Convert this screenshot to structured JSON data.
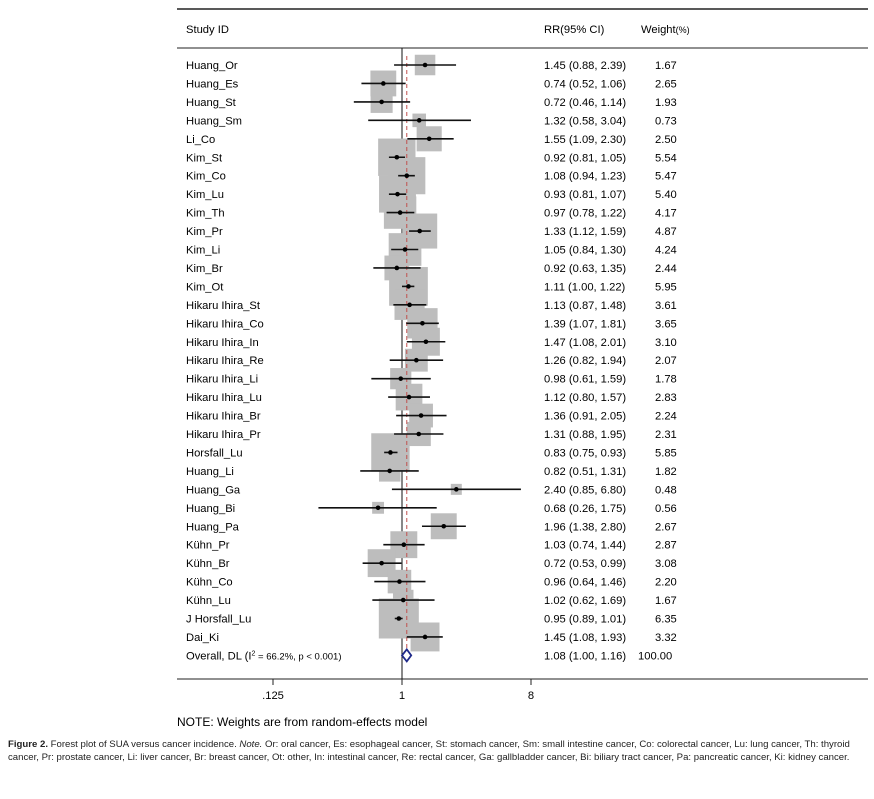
{
  "chart_data": {
    "type": "forest",
    "headers": {
      "study": "Study ID",
      "estimate": "RR(95% CI)",
      "weight": "Weight",
      "weight_unit": "(%)"
    },
    "x_scale": "log2",
    "x_ticks": [
      ".125",
      "1",
      "8"
    ],
    "x_tick_values": [
      0.125,
      1,
      8
    ],
    "xlim": [
      0.125,
      8
    ],
    "null_line": 1,
    "overall_line": 1.08,
    "studies": [
      {
        "label": "Huang_Or",
        "rr": 1.45,
        "lo": 0.88,
        "hi": 2.39,
        "text": "1.45 (0.88, 2.39)",
        "weight": "1.67"
      },
      {
        "label": "Huang_Es",
        "rr": 0.74,
        "lo": 0.52,
        "hi": 1.06,
        "text": "0.74 (0.52, 1.06)",
        "weight": "2.65"
      },
      {
        "label": "Huang_St",
        "rr": 0.72,
        "lo": 0.46,
        "hi": 1.14,
        "text": "0.72 (0.46, 1.14)",
        "weight": "1.93"
      },
      {
        "label": "Huang_Sm",
        "rr": 1.32,
        "lo": 0.58,
        "hi": 3.04,
        "text": "1.32 (0.58, 3.04)",
        "weight": "0.73"
      },
      {
        "label": "Li_Co",
        "rr": 1.55,
        "lo": 1.09,
        "hi": 2.3,
        "text": "1.55 (1.09, 2.30)",
        "weight": "2.50"
      },
      {
        "label": "Kim_St",
        "rr": 0.92,
        "lo": 0.81,
        "hi": 1.05,
        "text": "0.92 (0.81, 1.05)",
        "weight": "5.54"
      },
      {
        "label": "Kim_Co",
        "rr": 1.08,
        "lo": 0.94,
        "hi": 1.23,
        "text": "1.08 (0.94, 1.23)",
        "weight": "5.47"
      },
      {
        "label": "Kim_Lu",
        "rr": 0.93,
        "lo": 0.81,
        "hi": 1.07,
        "text": "0.93 (0.81, 1.07)",
        "weight": "5.40"
      },
      {
        "label": "Kim_Th",
        "rr": 0.97,
        "lo": 0.78,
        "hi": 1.22,
        "text": "0.97 (0.78, 1.22)",
        "weight": "4.17"
      },
      {
        "label": "Kim_Pr",
        "rr": 1.33,
        "lo": 1.12,
        "hi": 1.59,
        "text": "1.33 (1.12, 1.59)",
        "weight": "4.87"
      },
      {
        "label": "Kim_Li",
        "rr": 1.05,
        "lo": 0.84,
        "hi": 1.3,
        "text": "1.05 (0.84, 1.30)",
        "weight": "4.24"
      },
      {
        "label": "Kim_Br",
        "rr": 0.92,
        "lo": 0.63,
        "hi": 1.35,
        "text": "0.92 (0.63, 1.35)",
        "weight": "2.44"
      },
      {
        "label": "Kim_Ot",
        "rr": 1.11,
        "lo": 1.0,
        "hi": 1.22,
        "text": "1.11 (1.00, 1.22)",
        "weight": "5.95"
      },
      {
        "label": "Hikaru Ihira_St",
        "rr": 1.13,
        "lo": 0.87,
        "hi": 1.48,
        "text": "1.13 (0.87, 1.48)",
        "weight": "3.61"
      },
      {
        "label": "Hikaru Ihira_Co",
        "rr": 1.39,
        "lo": 1.07,
        "hi": 1.81,
        "text": "1.39 (1.07, 1.81)",
        "weight": "3.65"
      },
      {
        "label": "Hikaru Ihira_In",
        "rr": 1.47,
        "lo": 1.08,
        "hi": 2.01,
        "text": "1.47 (1.08, 2.01)",
        "weight": "3.10"
      },
      {
        "label": "Hikaru Ihira_Re",
        "rr": 1.26,
        "lo": 0.82,
        "hi": 1.94,
        "text": "1.26 (0.82, 1.94)",
        "weight": "2.07"
      },
      {
        "label": "Hikaru Ihira_Li",
        "rr": 0.98,
        "lo": 0.61,
        "hi": 1.59,
        "text": "0.98 (0.61, 1.59)",
        "weight": "1.78"
      },
      {
        "label": "Hikaru Ihira_Lu",
        "rr": 1.12,
        "lo": 0.8,
        "hi": 1.57,
        "text": "1.12 (0.80, 1.57)",
        "weight": "2.83"
      },
      {
        "label": "Hikaru Ihira_Br",
        "rr": 1.36,
        "lo": 0.91,
        "hi": 2.05,
        "text": "1.36 (0.91, 2.05)",
        "weight": "2.24"
      },
      {
        "label": "Hikaru Ihira_Pr",
        "rr": 1.31,
        "lo": 0.88,
        "hi": 1.95,
        "text": "1.31 (0.88, 1.95)",
        "weight": "2.31"
      },
      {
        "label": "Horsfall_Lu",
        "rr": 0.83,
        "lo": 0.75,
        "hi": 0.93,
        "text": "0.83 (0.75, 0.93)",
        "weight": "5.85"
      },
      {
        "label": "Huang_Li",
        "rr": 0.82,
        "lo": 0.51,
        "hi": 1.31,
        "text": "0.82 (0.51, 1.31)",
        "weight": "1.82"
      },
      {
        "label": "Huang_Ga",
        "rr": 2.4,
        "lo": 0.85,
        "hi": 6.8,
        "text": "2.40 (0.85, 6.80)",
        "weight": "0.48"
      },
      {
        "label": "Huang_Bi",
        "rr": 0.68,
        "lo": 0.26,
        "hi": 1.75,
        "text": "0.68 (0.26, 1.75)",
        "weight": "0.56"
      },
      {
        "label": "Huang_Pa",
        "rr": 1.96,
        "lo": 1.38,
        "hi": 2.8,
        "text": "1.96 (1.38, 2.80)",
        "weight": "2.67"
      },
      {
        "label": "Kühn_Pr",
        "rr": 1.03,
        "lo": 0.74,
        "hi": 1.44,
        "text": "1.03 (0.74, 1.44)",
        "weight": "2.87"
      },
      {
        "label": "Kühn_Br",
        "rr": 0.72,
        "lo": 0.53,
        "hi": 0.99,
        "text": "0.72 (0.53, 0.99)",
        "weight": "3.08"
      },
      {
        "label": "Kühn_Co",
        "rr": 0.96,
        "lo": 0.64,
        "hi": 1.46,
        "text": "0.96 (0.64, 1.46)",
        "weight": "2.20"
      },
      {
        "label": "Kühn_Lu",
        "rr": 1.02,
        "lo": 0.62,
        "hi": 1.69,
        "text": "1.02 (0.62, 1.69)",
        "weight": "1.67"
      },
      {
        "label": "J Horsfall_Lu",
        "rr": 0.95,
        "lo": 0.89,
        "hi": 1.01,
        "text": "0.95 (0.89, 1.01)",
        "weight": "6.35"
      },
      {
        "label": "Dai_Ki",
        "rr": 1.45,
        "lo": 1.08,
        "hi": 1.93,
        "text": "1.45 (1.08, 1.93)",
        "weight": "3.32"
      }
    ],
    "overall": {
      "label_prefix": "Overall, DL (I",
      "label_sup": "2",
      "label_suffix": " = 66.2%, p < 0.001)",
      "rr": 1.08,
      "lo": 1.0,
      "hi": 1.16,
      "text": "1.08 (1.00, 1.16)",
      "weight": "100.00"
    },
    "note": "NOTE: Weights are from random-effects model",
    "colors": {
      "box": "#bdbdbd",
      "ci": "#111111",
      "null_line": "#111111",
      "overall_line": "#c0504d",
      "diamond": "#1f2a8a"
    }
  },
  "caption": {
    "label": "Figure 2.",
    "text1": " Forest plot of SUA versus cancer incidence. ",
    "note_label": "Note.",
    "text2": " Or: oral cancer, Es: esophageal cancer, St: stomach cancer, Sm: small intestine cancer, Co: colorectal cancer, Lu: lung cancer, Th: thyroid cancer, Pr: prostate cancer, Li: liver cancer, Br: breast cancer, Ot: other, In: intestinal cancer, Re: rectal cancer, Ga: gallbladder cancer, Bi: biliary tract cancer, Pa: pancreatic cancer, Ki: kidney cancer."
  }
}
